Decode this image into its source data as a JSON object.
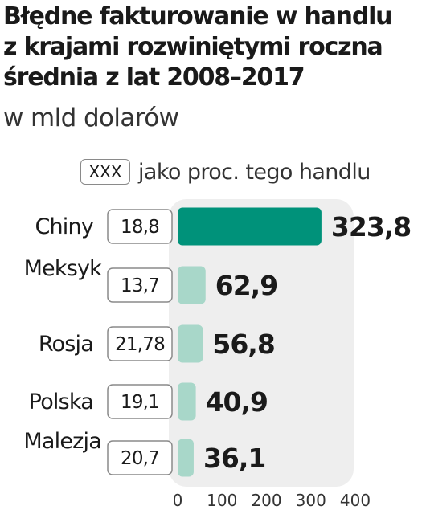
{
  "chart_data": {
    "type": "bar",
    "orientation": "horizontal",
    "title_lines": [
      "Błędne fakturowanie w handlu",
      "z krajami rozwiniętymi  roczna",
      "średnia z lat 2008–2017"
    ],
    "subtitle": "w mld dolarów",
    "legend": {
      "box_label": "XXX",
      "text": "jako proc. tego handlu"
    },
    "categories": [
      "Chiny",
      "Meksyk",
      "Rosja",
      "Polska",
      "Malezja"
    ],
    "values": [
      323.8,
      62.9,
      56.8,
      40.9,
      36.1
    ],
    "value_labels": [
      "323,8",
      "62,9",
      "56,8",
      "40,9",
      "36,1"
    ],
    "percent_labels": [
      "18,8",
      "13,7",
      "21,78",
      "19,1",
      "20,7"
    ],
    "xlim": [
      0,
      400
    ],
    "xticks": [
      "0",
      "100",
      "200",
      "300",
      "400"
    ],
    "grid": false,
    "colors": {
      "highlight": "#00927a",
      "bar": "#a8d7c9",
      "panel": "#eeeeee"
    }
  }
}
